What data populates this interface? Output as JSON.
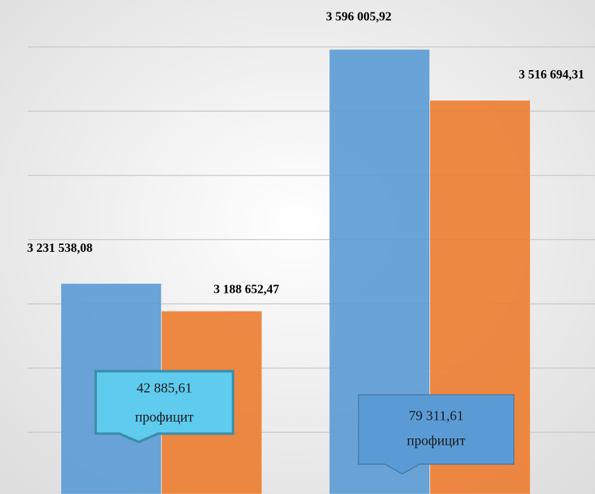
{
  "chart_data": {
    "type": "bar",
    "categories": [
      null,
      null
    ],
    "series": [
      {
        "color": "#5b9bd5",
        "values": [
          3231538.08,
          3596005.92
        ],
        "value_labels": [
          "3 231 538,08",
          "3 596 005,92"
        ]
      },
      {
        "color": "#ed7d31",
        "values": [
          3188652.47,
          3516694.31
        ],
        "value_labels": [
          "3 188 652,47",
          "3 516 694,31"
        ]
      }
    ],
    "ylim": [
      2904000,
      3673000
    ],
    "yticks": [
      3000000,
      3100000,
      3200000,
      3300000,
      3400000,
      3500000,
      3600000
    ],
    "grid": true,
    "tick_labels": false,
    "annotations": [
      {
        "lines": [
          "42 885,61",
          "профицит"
        ],
        "color": "#5ecbef",
        "border": "#3a8fa8"
      },
      {
        "lines": [
          "79 311,61",
          "профицит"
        ],
        "color": "#5b9bd5",
        "border": "#41719c"
      }
    ]
  }
}
